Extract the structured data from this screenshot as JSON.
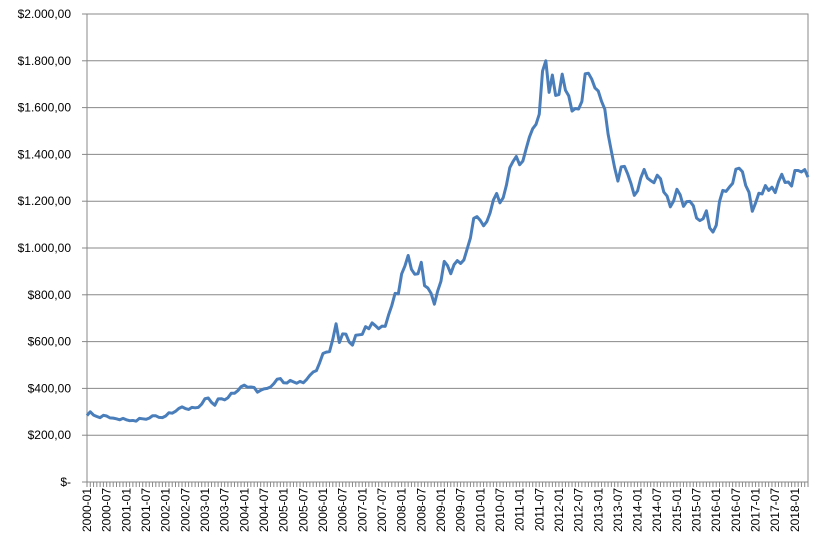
{
  "chart_data": {
    "type": "line",
    "categories": [
      "2000-01",
      null,
      null,
      null,
      null,
      null,
      "2000-07",
      null,
      null,
      null,
      null,
      null,
      "2001-01",
      null,
      null,
      null,
      null,
      null,
      "2001-07",
      null,
      null,
      null,
      null,
      null,
      "2002-01",
      null,
      null,
      null,
      null,
      null,
      "2002-07",
      null,
      null,
      null,
      null,
      null,
      "2003-01",
      null,
      null,
      null,
      null,
      null,
      "2003-07",
      null,
      null,
      null,
      null,
      null,
      "2004-01",
      null,
      null,
      null,
      null,
      null,
      "2004-07",
      null,
      null,
      null,
      null,
      null,
      "2005-01",
      null,
      null,
      null,
      null,
      null,
      "2005-07",
      null,
      null,
      null,
      null,
      null,
      "2006-01",
      null,
      null,
      null,
      null,
      null,
      "2006-07",
      null,
      null,
      null,
      null,
      null,
      "2007-01",
      null,
      null,
      null,
      null,
      null,
      "2007-07",
      null,
      null,
      null,
      null,
      null,
      "2008-01",
      null,
      null,
      null,
      null,
      null,
      "2008-07",
      null,
      null,
      null,
      null,
      null,
      "2009-01",
      null,
      null,
      null,
      null,
      null,
      "2009-07",
      null,
      null,
      null,
      null,
      null,
      "2010-01",
      null,
      null,
      null,
      null,
      null,
      "2010-07",
      null,
      null,
      null,
      null,
      null,
      "2011-01",
      null,
      null,
      null,
      null,
      null,
      "2011-07",
      null,
      null,
      null,
      null,
      null,
      "2012-01",
      null,
      null,
      null,
      null,
      null,
      "2012-07",
      null,
      null,
      null,
      null,
      null,
      "2013-01",
      null,
      null,
      null,
      null,
      null,
      "2013-07",
      null,
      null,
      null,
      null,
      null,
      "2014-01",
      null,
      null,
      null,
      null,
      null,
      "2014-07",
      null,
      null,
      null,
      null,
      null,
      "2015-01",
      null,
      null,
      null,
      null,
      null,
      "2015-07",
      null,
      null,
      null,
      null,
      null,
      "2016-01",
      null,
      null,
      null,
      null,
      null,
      "2016-07",
      null,
      null,
      null,
      null,
      null,
      "2017-01",
      null,
      null,
      null,
      null,
      null,
      "2017-07",
      null,
      null,
      null,
      null,
      null,
      "2018-01",
      null,
      null,
      null,
      null
    ],
    "values": [
      284,
      300,
      286,
      280,
      275,
      285,
      282,
      274,
      273,
      270,
      266,
      272,
      266,
      262,
      263,
      260,
      272,
      270,
      268,
      273,
      283,
      283,
      276,
      275,
      282,
      296,
      294,
      302,
      314,
      321,
      314,
      310,
      319,
      317,
      319,
      333,
      356,
      359,
      340,
      328,
      355,
      356,
      351,
      360,
      379,
      379,
      390,
      407,
      414,
      405,
      406,
      404,
      384,
      392,
      398,
      400,
      406,
      420,
      439,
      442,
      424,
      423,
      434,
      428,
      422,
      430,
      424,
      438,
      456,
      470,
      476,
      510,
      549,
      555,
      557,
      610,
      676,
      596,
      633,
      632,
      598,
      585,
      627,
      629,
      631,
      664,
      655,
      680,
      668,
      655,
      666,
      665,
      713,
      754,
      806,
      804,
      889,
      923,
      968,
      909,
      888,
      890,
      939,
      839,
      829,
      806,
      760,
      816,
      858,
      943,
      925,
      890,
      929,
      946,
      934,
      949,
      996,
      1043,
      1127,
      1134,
      1118,
      1095,
      1113,
      1150,
      1205,
      1233,
      1193,
      1215,
      1270,
      1343,
      1370,
      1391,
      1356,
      1372,
      1424,
      1474,
      1510,
      1528,
      1572,
      1756,
      1800,
      1665,
      1739,
      1652,
      1656,
      1743,
      1674,
      1650,
      1585,
      1596,
      1594,
      1626,
      1744,
      1747,
      1722,
      1684,
      1671,
      1627,
      1593,
      1487,
      1414,
      1343,
      1286,
      1347,
      1349,
      1316,
      1275,
      1225,
      1244,
      1300,
      1336,
      1299,
      1288,
      1279,
      1311,
      1296,
      1239,
      1222,
      1176,
      1201,
      1251,
      1227,
      1178,
      1198,
      1199,
      1181,
      1128,
      1117,
      1125,
      1159,
      1086,
      1068,
      1097,
      1199,
      1246,
      1242,
      1260,
      1276,
      1337,
      1341,
      1326,
      1267,
      1238,
      1157,
      1192,
      1234,
      1231,
      1267,
      1246,
      1260,
      1237,
      1283,
      1315,
      1280,
      1282,
      1265,
      1331,
      1331,
      1325,
      1335,
      1303
    ],
    "color": "#4a7ebb",
    "ylim": [
      0,
      2000
    ],
    "yticks": [
      {
        "value": 0,
        "label": "$-"
      },
      {
        "value": 200,
        "label": "$200,00"
      },
      {
        "value": 400,
        "label": "$400,00"
      },
      {
        "value": 600,
        "label": "$600,00"
      },
      {
        "value": 800,
        "label": "$800,00"
      },
      {
        "value": 1000,
        "label": "$1.000,00"
      },
      {
        "value": 1200,
        "label": "$1.200,00"
      },
      {
        "value": 1400,
        "label": "$1.400,00"
      },
      {
        "value": 1600,
        "label": "$1.600,00"
      },
      {
        "value": 1800,
        "label": "$1.800,00"
      },
      {
        "value": 2000,
        "label": "$2.000,00"
      }
    ],
    "grid": true
  }
}
